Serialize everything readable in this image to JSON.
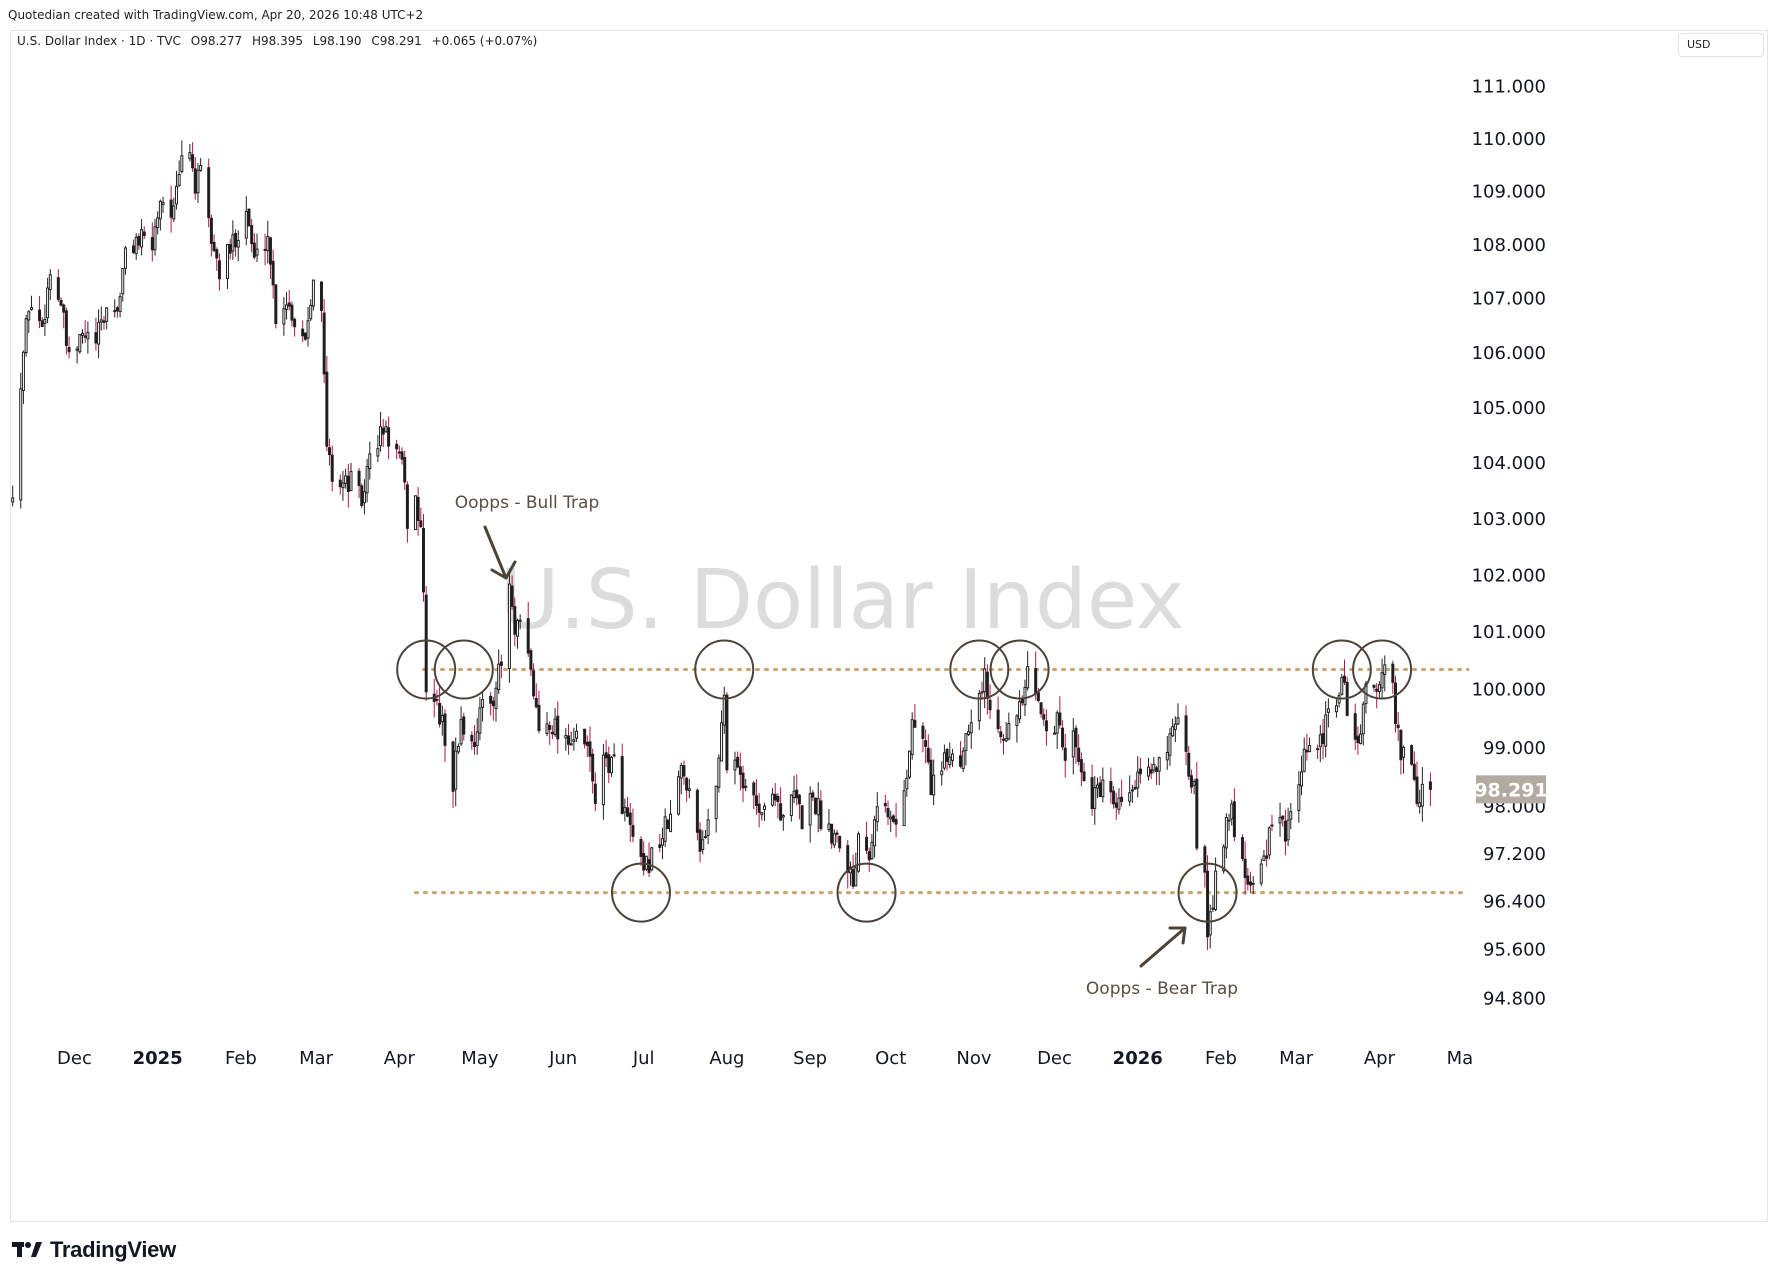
{
  "credit": "Quotedian created with TradingView.com, Apr 20, 2026 10:48 UTC+2",
  "header": {
    "symbol": "U.S. Dollar Index · 1D · TVC",
    "open": "O98.277",
    "high": "H98.395",
    "low": "L98.190",
    "close": "C98.291",
    "change": "+0.065 (+0.07%)"
  },
  "currency_button": "USD",
  "brand": "TradingView",
  "chart_data": {
    "type": "candlestick",
    "watermark": "U.S. Dollar Index",
    "y_ticks": [
      "111.000",
      "110.000",
      "109.000",
      "108.000",
      "107.000",
      "106.000",
      "105.000",
      "104.000",
      "103.000",
      "102.000",
      "101.000",
      "100.000",
      "99.000",
      "98.000",
      "97.200",
      "96.400",
      "95.600",
      "94.800"
    ],
    "y_scale": "log",
    "ylim": [
      94.2,
      111.9
    ],
    "x_ticks": [
      {
        "label": "Dec",
        "date": "2024-12-01"
      },
      {
        "label": "2025",
        "date": "2025-01-01",
        "bold": true
      },
      {
        "label": "Feb",
        "date": "2025-02-01"
      },
      {
        "label": "Mar",
        "date": "2025-03-01"
      },
      {
        "label": "Apr",
        "date": "2025-04-01"
      },
      {
        "label": "May",
        "date": "2025-05-01"
      },
      {
        "label": "Jun",
        "date": "2025-06-01"
      },
      {
        "label": "Jul",
        "date": "2025-07-01"
      },
      {
        "label": "Aug",
        "date": "2025-08-01"
      },
      {
        "label": "Sep",
        "date": "2025-09-01"
      },
      {
        "label": "Oct",
        "date": "2025-10-01"
      },
      {
        "label": "Nov",
        "date": "2025-11-01"
      },
      {
        "label": "Dec",
        "date": "2025-12-01"
      },
      {
        "label": "2026",
        "date": "2026-01-01",
        "bold": true
      },
      {
        "label": "Feb",
        "date": "2026-02-01"
      },
      {
        "label": "Mar",
        "date": "2026-03-01"
      },
      {
        "label": "Apr",
        "date": "2026-04-01"
      },
      {
        "label": "Ma",
        "date": "2026-05-01"
      }
    ],
    "xlim": [
      "2024-11-07",
      "2026-05-04"
    ],
    "last_price": "98.291",
    "levels": [
      {
        "value": 100.35,
        "style": "dotted",
        "color": "#c9a46e",
        "from": "2025-04-10",
        "to": "2026-05-04"
      },
      {
        "value": 96.55,
        "style": "dotted",
        "color": "#c9a46e",
        "from": "2025-04-07",
        "to": "2026-05-04"
      }
    ],
    "circles": [
      {
        "date": "2025-04-11",
        "value": 100.35
      },
      {
        "date": "2025-04-25",
        "value": 100.35
      },
      {
        "date": "2025-07-31",
        "value": 100.35
      },
      {
        "date": "2025-11-03",
        "value": 100.35
      },
      {
        "date": "2025-11-18",
        "value": 100.35
      },
      {
        "date": "2026-03-18",
        "value": 100.35
      },
      {
        "date": "2026-04-02",
        "value": 100.35
      },
      {
        "date": "2025-06-30",
        "value": 96.55
      },
      {
        "date": "2025-09-22",
        "value": 96.55
      },
      {
        "date": "2026-01-27",
        "value": 96.55
      }
    ],
    "annotations": [
      {
        "text": "Oopps - Bull Trap",
        "arrow": "down"
      },
      {
        "text": "Oopps - Bear Trap",
        "arrow": "up"
      }
    ],
    "colors": {
      "up": "#ffffff",
      "down": "#1f1a1c",
      "wick_up": "#222222",
      "wick_down": "#b0174c",
      "border": "#222222",
      "level": "#c9a46e",
      "last_bg": "#b3aba1"
    },
    "close_path": [
      [
        "2024-11-08",
        103.6
      ],
      [
        "2024-11-12",
        106.0
      ],
      [
        "2024-11-14",
        106.9
      ],
      [
        "2024-11-19",
        106.5
      ],
      [
        "2024-11-22",
        107.5
      ],
      [
        "2024-11-26",
        106.9
      ],
      [
        "2024-11-29",
        105.8
      ],
      [
        "2024-12-04",
        106.3
      ],
      [
        "2024-12-09",
        106.2
      ],
      [
        "2024-12-13",
        106.8
      ],
      [
        "2024-12-17",
        106.8
      ],
      [
        "2024-12-20",
        107.8
      ],
      [
        "2024-12-24",
        108.1
      ],
      [
        "2024-12-30",
        108.0
      ],
      [
        "2025-01-02",
        108.9
      ],
      [
        "2025-01-07",
        108.6
      ],
      [
        "2025-01-10",
        109.6
      ],
      [
        "2025-01-13",
        109.8
      ],
      [
        "2025-01-15",
        109.1
      ],
      [
        "2025-01-17",
        109.3
      ],
      [
        "2025-01-21",
        108.1
      ],
      [
        "2025-01-24",
        107.5
      ],
      [
        "2025-01-28",
        107.9
      ],
      [
        "2025-01-31",
        108.3
      ],
      [
        "2025-02-03",
        108.7
      ],
      [
        "2025-02-06",
        107.7
      ],
      [
        "2025-02-11",
        108.2
      ],
      [
        "2025-02-14",
        106.7
      ],
      [
        "2025-02-18",
        107.0
      ],
      [
        "2025-02-21",
        106.6
      ],
      [
        "2025-02-25",
        106.3
      ],
      [
        "2025-02-28",
        107.5
      ],
      [
        "2025-03-03",
        106.7
      ],
      [
        "2025-03-05",
        104.3
      ],
      [
        "2025-03-07",
        103.8
      ],
      [
        "2025-03-12",
        103.6
      ],
      [
        "2025-03-14",
        103.7
      ],
      [
        "2025-03-18",
        103.3
      ],
      [
        "2025-03-21",
        104.1
      ],
      [
        "2025-03-26",
        104.6
      ],
      [
        "2025-03-31",
        104.2
      ],
      [
        "2025-04-02",
        103.9
      ],
      [
        "2025-04-04",
        103.0
      ],
      [
        "2025-04-07",
        103.3
      ],
      [
        "2025-04-09",
        102.9
      ],
      [
        "2025-04-11",
        100.1
      ],
      [
        "2025-04-15",
        99.7
      ],
      [
        "2025-04-18",
        99.2
      ],
      [
        "2025-04-21",
        98.4
      ],
      [
        "2025-04-24",
        99.5
      ],
      [
        "2025-04-28",
        99.0
      ],
      [
        "2025-05-01",
        99.6
      ],
      [
        "2025-05-05",
        99.8
      ],
      [
        "2025-05-09",
        100.4
      ],
      [
        "2025-05-12",
        101.8
      ],
      [
        "2025-05-14",
        100.9
      ],
      [
        "2025-05-16",
        101.1
      ],
      [
        "2025-05-20",
        100.3
      ],
      [
        "2025-05-23",
        99.3
      ],
      [
        "2025-05-27",
        99.5
      ],
      [
        "2025-05-30",
        99.3
      ],
      [
        "2025-06-03",
        99.2
      ],
      [
        "2025-06-06",
        99.1
      ],
      [
        "2025-06-10",
        99.0
      ],
      [
        "2025-06-13",
        98.2
      ],
      [
        "2025-06-17",
        98.8
      ],
      [
        "2025-06-20",
        98.7
      ],
      [
        "2025-06-24",
        97.9
      ],
      [
        "2025-06-27",
        97.4
      ],
      [
        "2025-07-01",
        96.8
      ],
      [
        "2025-07-03",
        97.1
      ],
      [
        "2025-07-08",
        97.5
      ],
      [
        "2025-07-11",
        97.8
      ],
      [
        "2025-07-15",
        98.6
      ],
      [
        "2025-07-18",
        98.4
      ],
      [
        "2025-07-22",
        97.4
      ],
      [
        "2025-07-25",
        97.6
      ],
      [
        "2025-07-29",
        98.8
      ],
      [
        "2025-07-31",
        100.0
      ],
      [
        "2025-08-01",
        98.7
      ],
      [
        "2025-08-05",
        98.8
      ],
      [
        "2025-08-08",
        98.2
      ],
      [
        "2025-08-12",
        98.1
      ],
      [
        "2025-08-15",
        97.9
      ],
      [
        "2025-08-19",
        98.3
      ],
      [
        "2025-08-22",
        97.7
      ],
      [
        "2025-08-26",
        98.2
      ],
      [
        "2025-08-29",
        97.8
      ],
      [
        "2025-09-02",
        98.2
      ],
      [
        "2025-09-05",
        97.8
      ],
      [
        "2025-09-09",
        97.6
      ],
      [
        "2025-09-12",
        97.5
      ],
      [
        "2025-09-16",
        96.9
      ],
      [
        "2025-09-17",
        96.7
      ],
      [
        "2025-09-19",
        97.6
      ],
      [
        "2025-09-23",
        97.3
      ],
      [
        "2025-09-26",
        98.2
      ],
      [
        "2025-09-30",
        97.8
      ],
      [
        "2025-10-03",
        97.7
      ],
      [
        "2025-10-07",
        98.6
      ],
      [
        "2025-10-09",
        99.4
      ],
      [
        "2025-10-13",
        99.2
      ],
      [
        "2025-10-16",
        98.4
      ],
      [
        "2025-10-20",
        98.6
      ],
      [
        "2025-10-23",
        98.9
      ],
      [
        "2025-10-27",
        98.8
      ],
      [
        "2025-10-30",
        99.5
      ],
      [
        "2025-11-03",
        99.9
      ],
      [
        "2025-11-05",
        100.2
      ],
      [
        "2025-11-07",
        99.6
      ],
      [
        "2025-11-11",
        99.4
      ],
      [
        "2025-11-14",
        99.3
      ],
      [
        "2025-11-18",
        99.6
      ],
      [
        "2025-11-21",
        100.2
      ],
      [
        "2025-11-25",
        99.7
      ],
      [
        "2025-11-28",
        99.5
      ],
      [
        "2025-12-02",
        99.4
      ],
      [
        "2025-12-05",
        98.9
      ],
      [
        "2025-12-09",
        99.2
      ],
      [
        "2025-12-12",
        98.4
      ],
      [
        "2025-12-16",
        98.1
      ],
      [
        "2025-12-19",
        98.4
      ],
      [
        "2025-12-23",
        97.9
      ],
      [
        "2025-12-26",
        98.0
      ],
      [
        "2025-12-30",
        98.3
      ],
      [
        "2026-01-02",
        98.4
      ],
      [
        "2026-01-06",
        98.6
      ],
      [
        "2026-01-09",
        98.9
      ],
      [
        "2026-01-13",
        99.1
      ],
      [
        "2026-01-16",
        99.3
      ],
      [
        "2026-01-20",
        98.6
      ],
      [
        "2026-01-22",
        98.3
      ],
      [
        "2026-01-23",
        97.4
      ],
      [
        "2026-01-26",
        97.0
      ],
      [
        "2026-01-27",
        96.0
      ],
      [
        "2026-01-29",
        96.4
      ],
      [
        "2026-01-30",
        97.1
      ],
      [
        "2026-02-03",
        97.6
      ],
      [
        "2026-02-05",
        97.9
      ],
      [
        "2026-02-06",
        97.7
      ],
      [
        "2026-02-10",
        96.9
      ],
      [
        "2026-02-12",
        96.8
      ],
      [
        "2026-02-16",
        97.0
      ],
      [
        "2026-02-19",
        97.5
      ],
      [
        "2026-02-23",
        97.7
      ],
      [
        "2026-02-26",
        97.6
      ],
      [
        "2026-03-02",
        98.3
      ],
      [
        "2026-03-05",
        99.0
      ],
      [
        "2026-03-09",
        98.8
      ],
      [
        "2026-03-12",
        99.4
      ],
      [
        "2026-03-16",
        99.8
      ],
      [
        "2026-03-18",
        100.3
      ],
      [
        "2026-03-20",
        99.6
      ],
      [
        "2026-03-24",
        99.1
      ],
      [
        "2026-03-27",
        99.9
      ],
      [
        "2026-03-31",
        100.1
      ],
      [
        "2026-04-02",
        100.3
      ],
      [
        "2026-04-06",
        100.0
      ],
      [
        "2026-04-08",
        99.2
      ],
      [
        "2026-04-10",
        98.8
      ],
      [
        "2026-04-13",
        98.6
      ],
      [
        "2026-04-15",
        98.1
      ],
      [
        "2026-04-17",
        98.2
      ],
      [
        "2026-04-20",
        98.291
      ]
    ]
  }
}
